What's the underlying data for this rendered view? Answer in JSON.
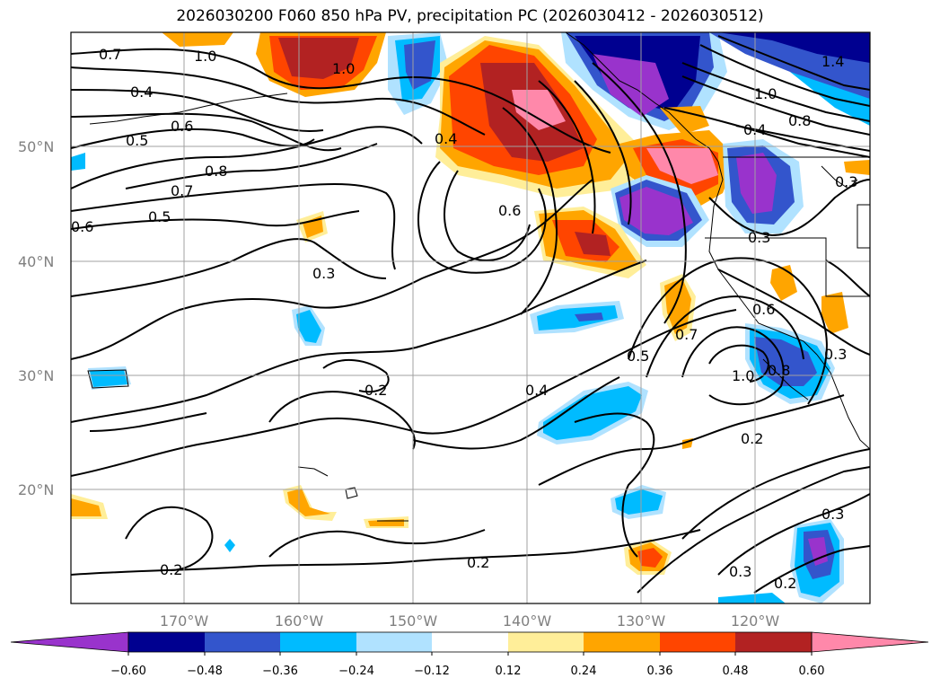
{
  "title": "2026030200 F060 850 hPa PV, precipitation PC (2026030412 - 2026030512)",
  "lat_labels": [
    "50°N",
    "40°N",
    "30°N",
    "20°N"
  ],
  "lon_labels": [
    "170°W",
    "160°W",
    "150°W",
    "140°W",
    "130°W",
    "120°W"
  ],
  "contour_labels": [
    "0.7",
    "1.0",
    "1.0",
    "0.4",
    "0.5",
    "0.6",
    "0.8",
    "0.7",
    "0.5",
    "0.6",
    "0.3",
    "0.2",
    "0.4",
    "0.5",
    "1.0",
    "0.8",
    "0.2",
    "0.3",
    "0.2",
    "0.2",
    "0.3",
    "0.2",
    "0.4",
    "0.6",
    "0.4",
    "0.8",
    "1.0",
    "1.4",
    "0.3",
    "0.3",
    "0.6",
    "0.7",
    "0.3"
  ],
  "colorbar": {
    "ticks": [
      "−0.60",
      "−0.48",
      "−0.36",
      "−0.24",
      "−0.12",
      "0.12",
      "0.24",
      "0.36",
      "0.48",
      "0.60"
    ],
    "colors": [
      "#9933cc",
      "#000090",
      "#3355cc",
      "#00bbff",
      "#b0e2ff",
      "#ffffff",
      "#ffee99",
      "#ffa500",
      "#ff4500",
      "#b22222",
      "#ff88aa"
    ]
  }
}
